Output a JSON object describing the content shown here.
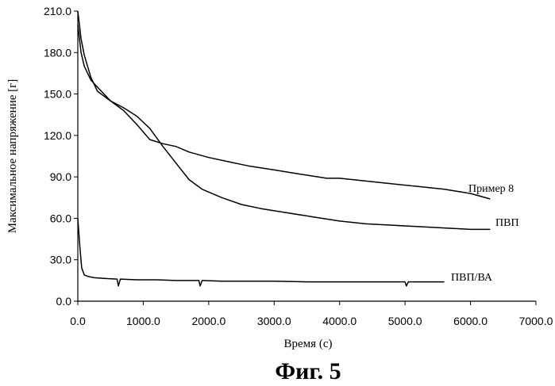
{
  "chart_data": {
    "type": "line",
    "title": "",
    "xlabel": "Время (с)",
    "ylabel": "Максимальное напряжение [г]",
    "xlim": [
      0,
      7000
    ],
    "ylim": [
      0,
      210
    ],
    "x_ticks": [
      "0.0",
      "1000.0",
      "2000.0",
      "3000.0",
      "4000.0",
      "5000.0",
      "6000.0",
      "7000.0"
    ],
    "y_ticks": [
      "0.0",
      "30.0",
      "60.0",
      "90.0",
      "120.0",
      "150.0",
      "180.0",
      "210.0"
    ],
    "series": [
      {
        "name": "Пример 8",
        "x": [
          0,
          50,
          100,
          200,
          300,
          500,
          700,
          900,
          1100,
          1300,
          1500,
          1700,
          2000,
          2300,
          2600,
          3000,
          3400,
          3800,
          4000,
          4400,
          4800,
          5200,
          5600,
          6000,
          6300
        ],
        "y": [
          200,
          180,
          170,
          160,
          155,
          145,
          138,
          128,
          117,
          114,
          112,
          108,
          104,
          101,
          98,
          95,
          92,
          89,
          89,
          87,
          85,
          83,
          81,
          78,
          74
        ]
      },
      {
        "name": "ПВП",
        "x": [
          0,
          50,
          100,
          200,
          300,
          500,
          700,
          900,
          1100,
          1300,
          1500,
          1700,
          1900,
          2200,
          2500,
          2800,
          3200,
          3600,
          4000,
          4400,
          4800,
          5200,
          5600,
          6000,
          6300
        ],
        "y": [
          210,
          190,
          178,
          162,
          152,
          145,
          140,
          134,
          125,
          112,
          100,
          88,
          81,
          75,
          70,
          67,
          64,
          61,
          58,
          56,
          55,
          54,
          53,
          52,
          52
        ]
      },
      {
        "name": "ПВП/ВА",
        "x": [
          0,
          30,
          60,
          100,
          150,
          250,
          400,
          600,
          620,
          650,
          900,
          1200,
          1500,
          1850,
          1870,
          1900,
          2200,
          2600,
          3000,
          3500,
          4000,
          4500,
          5000,
          5020,
          5050,
          5300,
          5600
        ],
        "y": [
          60,
          40,
          24,
          19,
          18,
          17,
          16.5,
          16,
          11,
          16,
          15.5,
          15.5,
          15,
          15,
          11,
          15,
          14.5,
          14.5,
          14.5,
          14,
          14,
          14,
          14,
          11,
          14,
          14,
          14
        ]
      }
    ],
    "caption": "Фиг. 5"
  }
}
